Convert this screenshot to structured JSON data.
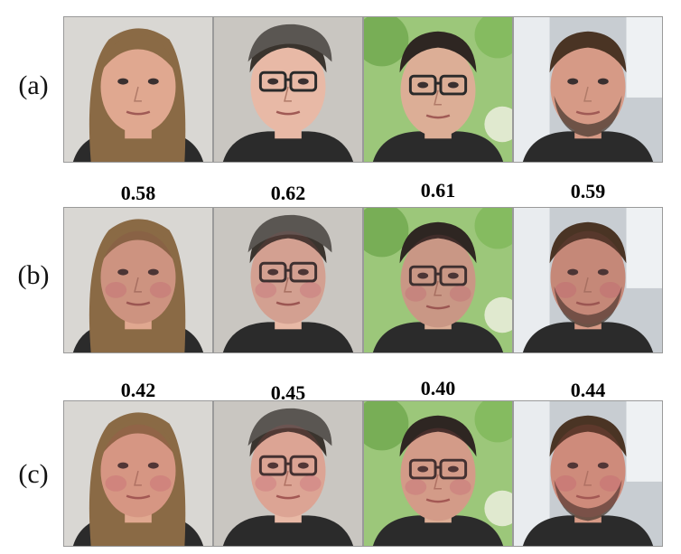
{
  "rows": [
    {
      "label": "(a)",
      "scores": []
    },
    {
      "label": "(b)",
      "scores": [
        "0.58",
        "0.62",
        "0.61",
        "0.59"
      ]
    },
    {
      "label": "(c)",
      "scores": [
        "0.42",
        "0.45",
        "0.40",
        "0.44"
      ]
    }
  ],
  "subjects": [
    {
      "name": "woman-long-hair",
      "hair": "#8a6a45",
      "skin": "#e0a890",
      "bg": "#d9d7d3",
      "glasses": false,
      "cap": false,
      "beard": false
    },
    {
      "name": "person-cap-glasses",
      "hair": "#3a342e",
      "skin": "#e8b9a6",
      "bg": "#c9c6c1",
      "glasses": true,
      "cap": true,
      "beard": false
    },
    {
      "name": "person-glasses-outdoor",
      "hair": "#2e2622",
      "skin": "#dcae96",
      "bg": "#9cc77a",
      "glasses": true,
      "cap": false,
      "beard": false
    },
    {
      "name": "man-beard",
      "hair": "#4a3424",
      "skin": "#d69a86",
      "bg": "#c8cdd2",
      "glasses": false,
      "cap": false,
      "beard": true
    }
  ],
  "row_tints": [
    "none",
    "#8a4a4a",
    "#b05050"
  ]
}
